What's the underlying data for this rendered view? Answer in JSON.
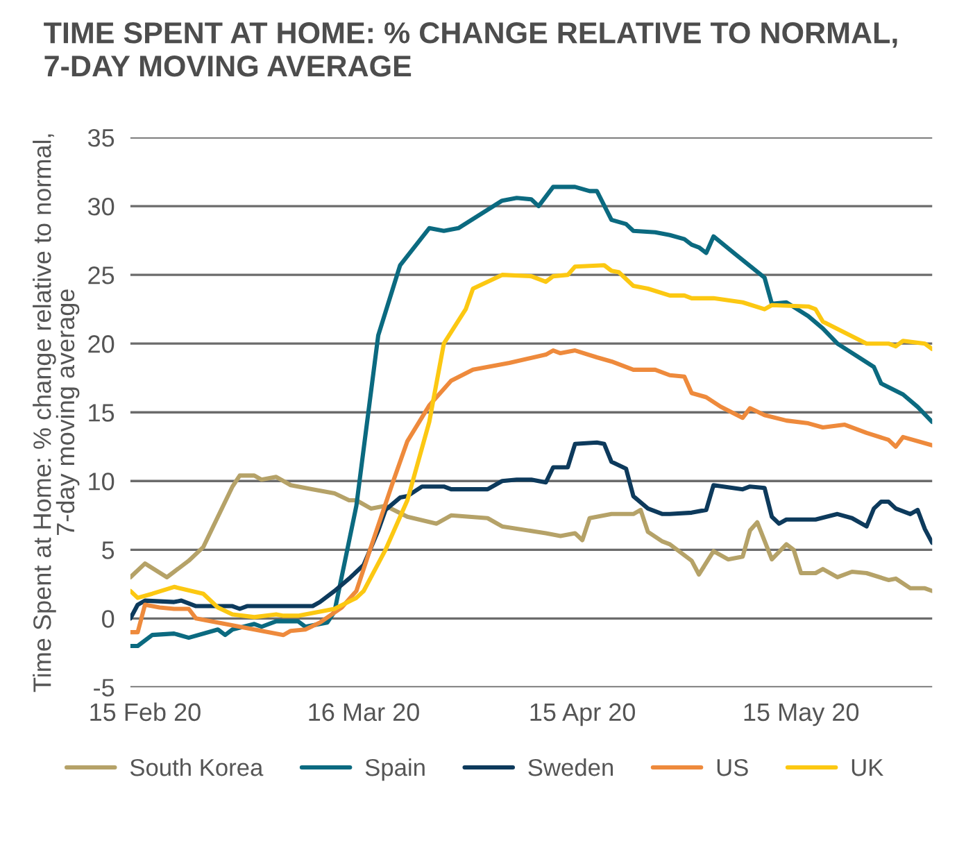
{
  "chart_data": {
    "type": "line",
    "title": "TIME SPENT AT HOME: % CHANGE RELATIVE TO NORMAL,\n7-DAY MOVING AVERAGE",
    "ylabel": "Time Spent at Home: % change relative to normal,\n7-day moving average",
    "xlim": [
      "2020-02-13",
      "2020-06-02"
    ],
    "xticks": [
      {
        "value": "2020-02-15",
        "label": "15 Feb 20"
      },
      {
        "value": "2020-03-16",
        "label": "16 Mar 20"
      },
      {
        "value": "2020-04-15",
        "label": "15 Apr 20"
      },
      {
        "value": "2020-05-15",
        "label": "15 May 20"
      }
    ],
    "ylim": [
      -5,
      35
    ],
    "yticks": [
      -5,
      0,
      5,
      10,
      15,
      20,
      25,
      30,
      35
    ],
    "grid": "y",
    "legend": "bottom",
    "line_style": "solid",
    "marker": "none",
    "series": [
      {
        "name": "South Korea",
        "color": "#b5a268",
        "x": [
          "2020-02-13",
          "2020-02-15",
          "2020-02-18",
          "2020-02-19",
          "2020-02-21",
          "2020-02-23",
          "2020-02-27",
          "2020-02-28",
          "2020-03-01",
          "2020-03-02",
          "2020-03-04",
          "2020-03-06",
          "2020-03-09",
          "2020-03-12",
          "2020-03-14",
          "2020-03-15",
          "2020-03-17",
          "2020-03-19",
          "2020-03-22",
          "2020-03-26",
          "2020-03-28",
          "2020-04-02",
          "2020-04-04",
          "2020-04-10",
          "2020-04-12",
          "2020-04-14",
          "2020-04-15",
          "2020-04-16",
          "2020-04-19",
          "2020-04-22",
          "2020-04-23",
          "2020-04-24",
          "2020-04-26",
          "2020-04-27",
          "2020-04-30",
          "2020-05-01",
          "2020-05-03",
          "2020-05-05",
          "2020-05-07",
          "2020-05-08",
          "2020-05-09",
          "2020-05-11",
          "2020-05-13",
          "2020-05-14",
          "2020-05-15",
          "2020-05-17",
          "2020-05-18",
          "2020-05-20",
          "2020-05-22",
          "2020-05-24",
          "2020-05-27",
          "2020-05-28",
          "2020-05-30",
          "2020-06-01",
          "2020-06-02"
        ],
        "values": [
          3.0,
          4.0,
          3.0,
          3.4,
          4.2,
          5.2,
          9.6,
          10.4,
          10.4,
          10.1,
          10.3,
          9.7,
          9.4,
          9.1,
          8.6,
          8.6,
          8.0,
          8.2,
          7.4,
          6.9,
          7.5,
          7.3,
          6.7,
          6.2,
          6.0,
          6.2,
          5.7,
          7.3,
          7.6,
          7.6,
          7.9,
          6.3,
          5.6,
          5.4,
          4.2,
          3.2,
          4.9,
          4.3,
          4.5,
          6.4,
          7.0,
          4.3,
          5.4,
          5.0,
          3.3,
          3.3,
          3.6,
          3.0,
          3.4,
          3.3,
          2.8,
          2.9,
          2.2,
          2.2,
          2.0
        ]
      },
      {
        "name": "Spain",
        "color": "#0b6a80",
        "x": [
          "2020-02-13",
          "2020-02-14",
          "2020-02-16",
          "2020-02-19",
          "2020-02-21",
          "2020-02-25",
          "2020-02-26",
          "2020-02-27",
          "2020-03-01",
          "2020-03-02",
          "2020-03-04",
          "2020-03-07",
          "2020-03-08",
          "2020-03-11",
          "2020-03-12",
          "2020-03-15",
          "2020-03-18",
          "2020-03-20",
          "2020-03-21",
          "2020-03-25",
          "2020-03-27",
          "2020-03-29",
          "2020-04-04",
          "2020-04-06",
          "2020-04-08",
          "2020-04-09",
          "2020-04-11",
          "2020-04-14",
          "2020-04-16",
          "2020-04-17",
          "2020-04-19",
          "2020-04-21",
          "2020-04-22",
          "2020-04-25",
          "2020-04-27",
          "2020-04-29",
          "2020-04-30",
          "2020-05-01",
          "2020-05-02",
          "2020-05-03",
          "2020-05-06",
          "2020-05-10",
          "2020-05-11",
          "2020-05-13",
          "2020-05-16",
          "2020-05-18",
          "2020-05-20",
          "2020-05-25",
          "2020-05-26",
          "2020-05-29",
          "2020-05-31",
          "2020-06-02"
        ],
        "values": [
          -2.0,
          -2.0,
          -1.2,
          -1.1,
          -1.4,
          -0.8,
          -1.2,
          -0.8,
          -0.4,
          -0.6,
          -0.2,
          -0.2,
          -0.6,
          -0.3,
          0.5,
          8.2,
          20.6,
          24.0,
          25.7,
          28.4,
          28.2,
          28.4,
          30.4,
          30.6,
          30.5,
          30.0,
          31.4,
          31.4,
          31.1,
          31.1,
          29.0,
          28.7,
          28.2,
          28.1,
          27.9,
          27.6,
          27.2,
          27.0,
          26.6,
          27.8,
          26.5,
          24.8,
          22.9,
          23.0,
          22.0,
          21.1,
          20.0,
          18.3,
          17.1,
          16.3,
          15.4,
          14.3
        ]
      },
      {
        "name": "Sweden",
        "color": "#0d3a5c",
        "x": [
          "2020-02-13",
          "2020-02-14",
          "2020-02-15",
          "2020-02-19",
          "2020-02-20",
          "2020-02-22",
          "2020-02-27",
          "2020-02-28",
          "2020-02-29",
          "2020-03-09",
          "2020-03-10",
          "2020-03-12",
          "2020-03-14",
          "2020-03-16",
          "2020-03-18",
          "2020-03-19",
          "2020-03-21",
          "2020-03-22",
          "2020-03-24",
          "2020-03-27",
          "2020-03-28",
          "2020-04-02",
          "2020-04-04",
          "2020-04-06",
          "2020-04-08",
          "2020-04-10",
          "2020-04-11",
          "2020-04-13",
          "2020-04-14",
          "2020-04-17",
          "2020-04-18",
          "2020-04-19",
          "2020-04-21",
          "2020-04-22",
          "2020-04-24",
          "2020-04-26",
          "2020-04-27",
          "2020-04-30",
          "2020-05-02",
          "2020-05-03",
          "2020-05-07",
          "2020-05-08",
          "2020-05-10",
          "2020-05-11",
          "2020-05-12",
          "2020-05-13",
          "2020-05-17",
          "2020-05-20",
          "2020-05-22",
          "2020-05-24",
          "2020-05-25",
          "2020-05-26",
          "2020-05-27",
          "2020-05-28",
          "2020-05-30",
          "2020-05-31",
          "2020-06-01",
          "2020-06-02"
        ],
        "values": [
          0.0,
          1.0,
          1.3,
          1.2,
          1.3,
          0.9,
          0.9,
          0.7,
          0.9,
          0.9,
          1.2,
          2.0,
          2.9,
          3.9,
          6.4,
          7.9,
          8.8,
          8.9,
          9.6,
          9.6,
          9.4,
          9.4,
          10.0,
          10.1,
          10.1,
          9.9,
          11.0,
          11.0,
          12.7,
          12.8,
          12.7,
          11.4,
          10.9,
          8.9,
          8.0,
          7.6,
          7.6,
          7.7,
          7.9,
          9.7,
          9.4,
          9.6,
          9.5,
          7.4,
          6.9,
          7.2,
          7.2,
          7.6,
          7.3,
          6.7,
          8.0,
          8.5,
          8.5,
          8.0,
          7.6,
          7.9,
          6.5,
          5.5
        ]
      },
      {
        "name": "US",
        "color": "#ee8a3c",
        "x": [
          "2020-02-13",
          "2020-02-14",
          "2020-02-15",
          "2020-02-17",
          "2020-02-19",
          "2020-02-21",
          "2020-02-22",
          "2020-02-27",
          "2020-03-01",
          "2020-03-03",
          "2020-03-05",
          "2020-03-06",
          "2020-03-08",
          "2020-03-10",
          "2020-03-13",
          "2020-03-15",
          "2020-03-17",
          "2020-03-20",
          "2020-03-22",
          "2020-03-25",
          "2020-03-28",
          "2020-03-31",
          "2020-04-05",
          "2020-04-10",
          "2020-04-11",
          "2020-04-12",
          "2020-04-14",
          "2020-04-17",
          "2020-04-19",
          "2020-04-22",
          "2020-04-25",
          "2020-04-27",
          "2020-04-29",
          "2020-04-30",
          "2020-05-02",
          "2020-05-04",
          "2020-05-07",
          "2020-05-08",
          "2020-05-10",
          "2020-05-13",
          "2020-05-16",
          "2020-05-18",
          "2020-05-21",
          "2020-05-24",
          "2020-05-27",
          "2020-05-28",
          "2020-05-29",
          "2020-06-02"
        ],
        "values": [
          -1.0,
          -1.0,
          1.0,
          0.8,
          0.7,
          0.7,
          0.0,
          -0.5,
          -0.8,
          -1.0,
          -1.2,
          -0.9,
          -0.8,
          -0.3,
          0.8,
          2.0,
          5.2,
          9.9,
          12.9,
          15.5,
          17.3,
          18.1,
          18.6,
          19.2,
          19.5,
          19.3,
          19.5,
          19.0,
          18.7,
          18.1,
          18.1,
          17.7,
          17.6,
          16.4,
          16.1,
          15.4,
          14.6,
          15.3,
          14.8,
          14.4,
          14.2,
          13.9,
          14.1,
          13.5,
          13.0,
          12.5,
          13.2,
          12.6
        ]
      },
      {
        "name": "UK",
        "color": "#fcc812",
        "x": [
          "2020-02-13",
          "2020-02-14",
          "2020-02-16",
          "2020-02-19",
          "2020-02-23",
          "2020-02-25",
          "2020-02-27",
          "2020-03-01",
          "2020-03-04",
          "2020-03-05",
          "2020-03-07",
          "2020-03-10",
          "2020-03-12",
          "2020-03-15",
          "2020-03-16",
          "2020-03-19",
          "2020-03-22",
          "2020-03-25",
          "2020-03-27",
          "2020-03-30",
          "2020-03-31",
          "2020-04-04",
          "2020-04-08",
          "2020-04-10",
          "2020-04-11",
          "2020-04-13",
          "2020-04-14",
          "2020-04-18",
          "2020-04-19",
          "2020-04-20",
          "2020-04-22",
          "2020-04-24",
          "2020-04-27",
          "2020-04-29",
          "2020-04-30",
          "2020-05-03",
          "2020-05-07",
          "2020-05-10",
          "2020-05-11",
          "2020-05-16",
          "2020-05-17",
          "2020-05-18",
          "2020-05-24",
          "2020-05-27",
          "2020-05-28",
          "2020-05-29",
          "2020-06-01",
          "2020-06-02"
        ],
        "values": [
          2.0,
          1.5,
          1.8,
          2.3,
          1.8,
          0.8,
          0.3,
          0.1,
          0.3,
          0.2,
          0.2,
          0.5,
          0.7,
          1.5,
          2.0,
          5.0,
          8.6,
          14.3,
          20.0,
          22.5,
          24.0,
          25.0,
          24.9,
          24.5,
          24.9,
          25.0,
          25.6,
          25.7,
          25.3,
          25.2,
          24.2,
          24.0,
          23.5,
          23.5,
          23.3,
          23.3,
          23.0,
          22.5,
          22.8,
          22.7,
          22.5,
          21.6,
          20.0,
          20.0,
          19.8,
          20.2,
          20.0,
          19.6
        ]
      }
    ]
  }
}
